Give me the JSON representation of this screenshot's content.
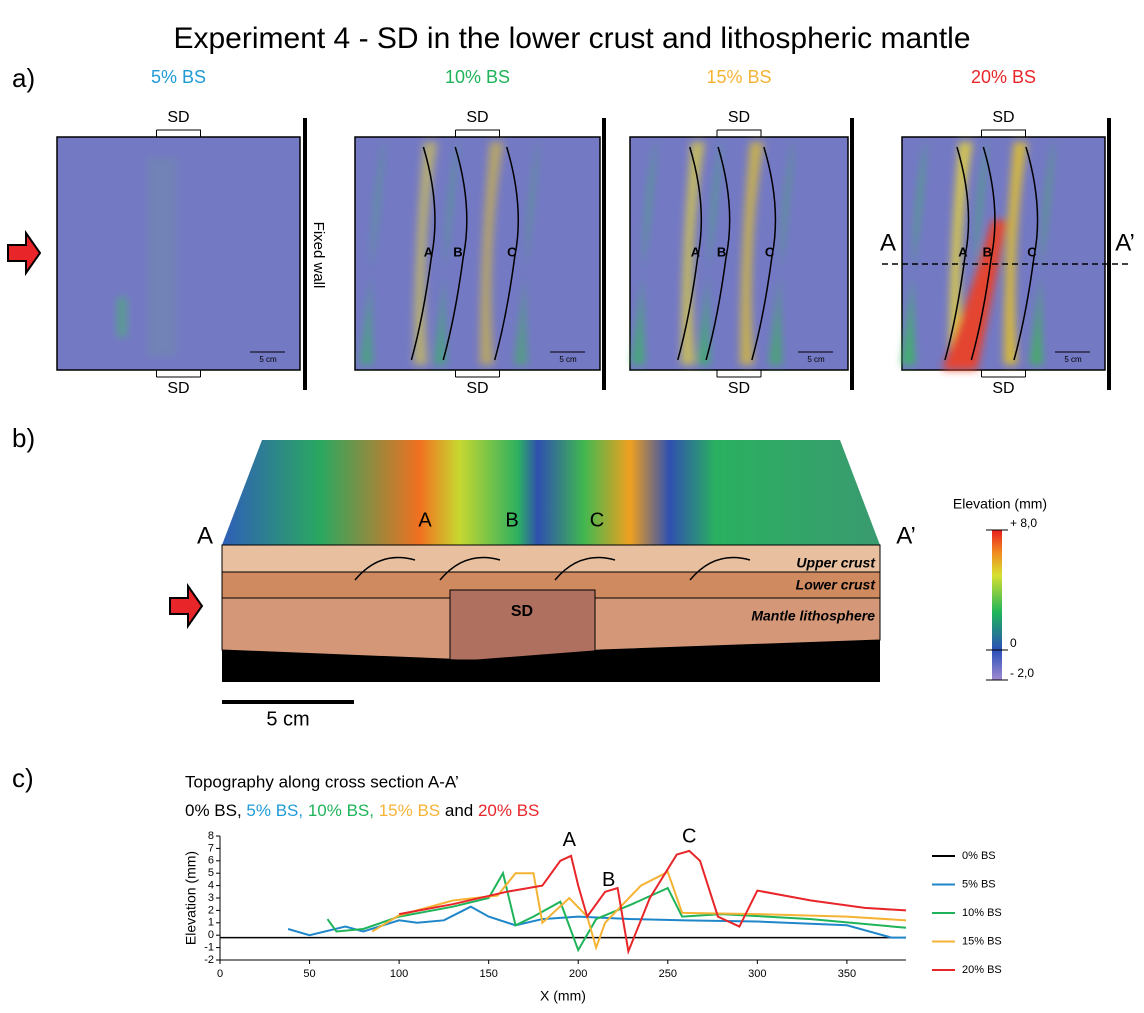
{
  "title": "Experiment 4 - SD in the lower crust and lithospheric mantle",
  "panel_a": {
    "label": "a)",
    "fixed_wall": "Fixed wall",
    "section_start": "A",
    "section_end": "A’",
    "maps": [
      {
        "title": "5% BS",
        "color": "#1f9bd7",
        "sd_top": "SD",
        "sd_bottom": "SD",
        "scale": "5 cm",
        "faults": []
      },
      {
        "title": "10% BS",
        "color": "#1fb45a",
        "sd_top": "SD",
        "sd_bottom": "SD",
        "scale": "5 cm",
        "faults": [
          "A",
          "B",
          "C"
        ]
      },
      {
        "title": "15% BS",
        "color": "#f5b335",
        "sd_top": "SD",
        "sd_bottom": "SD",
        "scale": "5 cm",
        "faults": [
          "A",
          "B",
          "C"
        ]
      },
      {
        "title": "20% BS",
        "color": "#e8262a",
        "sd_top": "SD",
        "sd_bottom": "SD",
        "scale": "5 cm",
        "faults": [
          "A",
          "B",
          "C"
        ]
      }
    ]
  },
  "panel_b": {
    "label": "b)",
    "section_start": "A",
    "section_end": "A’",
    "faults": [
      "A",
      "B",
      "C"
    ],
    "layers": [
      "Upper crust",
      "Lower crust",
      "Mantle lithosphere"
    ],
    "sd": "SD",
    "scale": "5 cm",
    "colorbar": {
      "title": "Elevation (mm)",
      "ticks": [
        {
          "value": 8,
          "label": "+ 8,0"
        },
        0,
        {
          "value": -2,
          "label": "- 2,0"
        }
      ]
    }
  },
  "chart_data": {
    "type": "line",
    "label": "c)",
    "title": "Topography along cross section A-A’",
    "subtitle": [
      {
        "text": "0% BS, ",
        "color": "#000000"
      },
      {
        "text": "5% BS, ",
        "color": "#1f9bd7"
      },
      {
        "text": "10% BS, ",
        "color": "#1fb45a"
      },
      {
        "text": "15% BS ",
        "color": "#f5b335"
      },
      {
        "text": "and ",
        "color": "#000000"
      },
      {
        "text": "20% BS",
        "color": "#e8262a"
      }
    ],
    "x_label": "X (mm)",
    "y_label": "Elevation (mm)",
    "xlim": [
      0,
      383
    ],
    "xticks": [
      0,
      50,
      100,
      150,
      200,
      250,
      300,
      350
    ],
    "ylim": [
      -2,
      8
    ],
    "yticks": [
      -2,
      -1,
      0,
      1,
      2,
      3,
      4,
      5,
      6,
      7,
      8
    ],
    "annotations": [
      {
        "text": "A",
        "x": 195,
        "y": 7.6
      },
      {
        "text": "B",
        "x": 217,
        "y": 4.4
      },
      {
        "text": "C",
        "x": 262,
        "y": 7.9
      }
    ],
    "series": [
      {
        "name": "0% BS",
        "color": "#000000",
        "x": [
          0,
          383
        ],
        "values": [
          -0.2,
          -0.2
        ]
      },
      {
        "name": "5% BS",
        "color": "#1f87c9",
        "x": [
          38,
          50,
          70,
          80,
          100,
          110,
          125,
          140,
          150,
          165,
          180,
          200,
          230,
          260,
          300,
          350,
          375,
          383
        ],
        "values": [
          0.5,
          0,
          0.7,
          0.3,
          1.2,
          1,
          1.2,
          2.3,
          1.5,
          0.8,
          1.3,
          1.5,
          1.3,
          1.2,
          1.1,
          0.8,
          -0.2,
          -0.2
        ]
      },
      {
        "name": "10% BS",
        "color": "#1fb45a",
        "x": [
          60,
          65,
          80,
          100,
          130,
          150,
          158,
          165,
          175,
          190,
          200,
          210,
          230,
          250,
          258,
          280,
          330,
          383
        ],
        "values": [
          1.3,
          0.3,
          0.5,
          1.5,
          2.3,
          3,
          5,
          0.8,
          1.5,
          2.7,
          -1.2,
          1.3,
          2.5,
          3.8,
          1.5,
          1.7,
          1.3,
          0.6
        ]
      },
      {
        "name": "15% BS",
        "color": "#f5b335",
        "x": [
          85,
          100,
          130,
          155,
          165,
          175,
          180,
          195,
          205,
          210,
          215,
          235,
          250,
          258,
          300,
          350,
          383
        ],
        "values": [
          0.3,
          1.6,
          2.8,
          3.2,
          5,
          5,
          1,
          3,
          1.5,
          -1,
          1,
          4,
          5.1,
          1.8,
          1.7,
          1.5,
          1.2
        ]
      },
      {
        "name": "20% BS",
        "color": "#e8262a",
        "x": [
          100,
          130,
          160,
          180,
          190,
          196,
          200,
          205,
          215,
          222,
          228,
          240,
          255,
          262,
          268,
          278,
          290,
          300,
          330,
          360,
          383
        ],
        "values": [
          1.7,
          2.5,
          3.5,
          4,
          6,
          6.4,
          4,
          1.5,
          3.5,
          3.8,
          -1.3,
          3,
          6.5,
          6.8,
          6,
          1.5,
          0.7,
          3.6,
          2.8,
          2.2,
          2
        ]
      }
    ]
  }
}
